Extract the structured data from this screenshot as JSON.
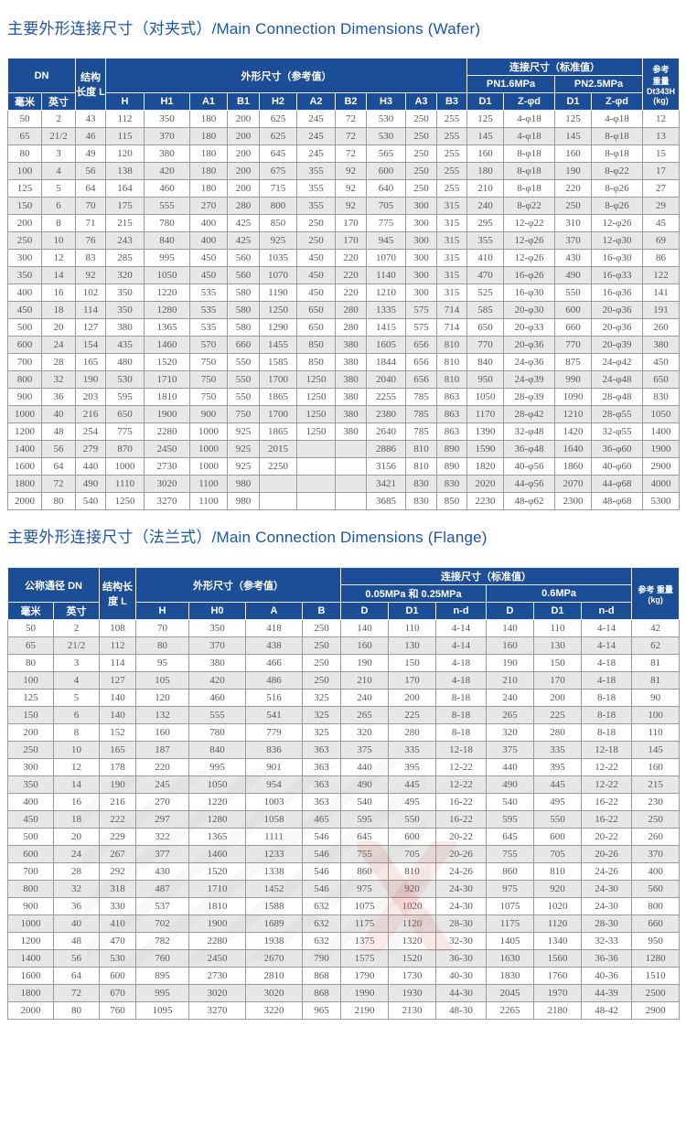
{
  "colors": {
    "header_bg": "#1b4e96",
    "title_text": "#1f55a5",
    "row_alt": "#e7e7e7",
    "body_text": "#5a5a5a"
  },
  "wafer": {
    "title": "主要外形连接尺寸（对夹式）/Main Connection Dimensions (Wafer)",
    "header": {
      "dn": "DN",
      "mm": "毫米",
      "inch": "英寸",
      "length": "结构长度 L",
      "outline": "外形尺寸（参考值）",
      "dims": [
        "H",
        "H1",
        "A1",
        "B1",
        "H2",
        "A2",
        "B2",
        "H3",
        "A3",
        "B3"
      ],
      "conn": "连接尺寸（标准值）",
      "pn16": "PN1.6MPa",
      "pn25": "PN2.5MPa",
      "d1": "D1",
      "zphid": "Z-φd",
      "weight_l1": "参考",
      "weight_l2": "重量",
      "weight_l3": "Dt343H",
      "weight_l4": "(kg)"
    },
    "rows": [
      [
        "50",
        "2",
        "43",
        "112",
        "350",
        "180",
        "200",
        "625",
        "245",
        "72",
        "530",
        "250",
        "255",
        "125",
        "4-φ18",
        "125",
        "4-φ18",
        "12"
      ],
      [
        "65",
        "21/2",
        "46",
        "115",
        "370",
        "180",
        "200",
        "625",
        "245",
        "72",
        "530",
        "250",
        "255",
        "145",
        "4-φ18",
        "145",
        "8-φ18",
        "13"
      ],
      [
        "80",
        "3",
        "49",
        "120",
        "380",
        "180",
        "200",
        "645",
        "245",
        "72",
        "565",
        "250",
        "255",
        "160",
        "8-φ18",
        "160",
        "8-φ18",
        "15"
      ],
      [
        "100",
        "4",
        "56",
        "138",
        "420",
        "180",
        "200",
        "675",
        "355",
        "92",
        "600",
        "250",
        "255",
        "180",
        "8-φ18",
        "190",
        "8-φ22",
        "17"
      ],
      [
        "125",
        "5",
        "64",
        "164",
        "460",
        "180",
        "200",
        "715",
        "355",
        "92",
        "640",
        "250",
        "255",
        "210",
        "8-φ18",
        "220",
        "8-φ26",
        "27"
      ],
      [
        "150",
        "6",
        "70",
        "175",
        "555",
        "270",
        "280",
        "800",
        "355",
        "92",
        "705",
        "300",
        "315",
        "240",
        "8-φ22",
        "250",
        "8-φ26",
        "29"
      ],
      [
        "200",
        "8",
        "71",
        "215",
        "780",
        "400",
        "425",
        "850",
        "250",
        "170",
        "775",
        "300",
        "315",
        "295",
        "12-φ22",
        "310",
        "12-φ26",
        "45"
      ],
      [
        "250",
        "10",
        "76",
        "243",
        "840",
        "400",
        "425",
        "925",
        "250",
        "170",
        "945",
        "300",
        "315",
        "355",
        "12-φ26",
        "370",
        "12-φ30",
        "69"
      ],
      [
        "300",
        "12",
        "83",
        "285",
        "995",
        "450",
        "560",
        "1035",
        "450",
        "220",
        "1070",
        "300",
        "315",
        "410",
        "12-φ26",
        "430",
        "16-φ30",
        "86"
      ],
      [
        "350",
        "14",
        "92",
        "320",
        "1050",
        "450",
        "560",
        "1070",
        "450",
        "220",
        "1140",
        "300",
        "315",
        "470",
        "16-φ26",
        "490",
        "16-φ33",
        "122"
      ],
      [
        "400",
        "16",
        "102",
        "350",
        "1220",
        "535",
        "580",
        "1190",
        "450",
        "220",
        "1210",
        "300",
        "315",
        "525",
        "16-φ30",
        "550",
        "16-φ36",
        "141"
      ],
      [
        "450",
        "18",
        "114",
        "350",
        "1280",
        "535",
        "580",
        "1250",
        "650",
        "280",
        "1335",
        "575",
        "714",
        "585",
        "20-φ30",
        "600",
        "20-φ36",
        "191"
      ],
      [
        "500",
        "20",
        "127",
        "380",
        "1365",
        "535",
        "580",
        "1290",
        "650",
        "280",
        "1415",
        "575",
        "714",
        "650",
        "20-φ33",
        "660",
        "20-φ36",
        "260"
      ],
      [
        "600",
        "24",
        "154",
        "435",
        "1460",
        "570",
        "660",
        "1455",
        "850",
        "380",
        "1605",
        "656",
        "810",
        "770",
        "20-φ36",
        "770",
        "20-φ39",
        "380"
      ],
      [
        "700",
        "28",
        "165",
        "480",
        "1520",
        "750",
        "550",
        "1585",
        "850",
        "380",
        "1844",
        "656",
        "810",
        "840",
        "24-φ36",
        "875",
        "24-φ42",
        "450"
      ],
      [
        "800",
        "32",
        "190",
        "530",
        "1710",
        "750",
        "550",
        "1700",
        "1250",
        "380",
        "2040",
        "656",
        "810",
        "950",
        "24-φ39",
        "990",
        "24-φ48",
        "650"
      ],
      [
        "900",
        "36",
        "203",
        "595",
        "1810",
        "750",
        "550",
        "1865",
        "1250",
        "380",
        "2255",
        "785",
        "863",
        "1050",
        "28-φ39",
        "1090",
        "28-φ48",
        "830"
      ],
      [
        "1000",
        "40",
        "216",
        "650",
        "1900",
        "900",
        "750",
        "1700",
        "1250",
        "380",
        "2380",
        "785",
        "863",
        "1170",
        "28-φ42",
        "1210",
        "28-φ55",
        "1050"
      ],
      [
        "1200",
        "48",
        "254",
        "775",
        "2280",
        "1000",
        "925",
        "1865",
        "1250",
        "380",
        "2640",
        "785",
        "863",
        "1390",
        "32-φ48",
        "1420",
        "32-φ55",
        "1400"
      ],
      [
        "1400",
        "56",
        "279",
        "870",
        "2450",
        "1000",
        "925",
        "2015",
        "",
        "",
        "2886",
        "810",
        "890",
        "1590",
        "36-φ48",
        "1640",
        "36-φ60",
        "1900"
      ],
      [
        "1600",
        "64",
        "440",
        "1000",
        "2730",
        "1000",
        "925",
        "2250",
        "",
        "",
        "3156",
        "810",
        "890",
        "1820",
        "40-φ56",
        "1860",
        "40-φ60",
        "2900"
      ],
      [
        "1800",
        "72",
        "490",
        "1110",
        "3020",
        "1100",
        "980",
        "",
        "",
        "",
        "3421",
        "830",
        "830",
        "2020",
        "44-φ56",
        "2070",
        "44-φ68",
        "4000"
      ],
      [
        "2000",
        "80",
        "540",
        "1250",
        "3270",
        "1100",
        "980",
        "",
        "",
        "",
        "3685",
        "830",
        "850",
        "2230",
        "48-φ62",
        "2300",
        "48-φ68",
        "5300"
      ]
    ]
  },
  "flange": {
    "title": "主要外形连接尺寸（法兰式）/Main Connection Dimensions (Flange)",
    "header": {
      "dn": "公称通径 DN",
      "mm": "毫米",
      "inch": "英寸",
      "length": "结构长度 L",
      "outline": "外形尺寸（参考值）",
      "dims": [
        "H",
        "H0",
        "A",
        "B"
      ],
      "conn": "连接尺寸（标准值）",
      "p_low": "0.05MPa 和 0.25MPa",
      "p_high": "0.6MPa",
      "d": "D",
      "d1": "D1",
      "nd": "n-d",
      "weight_l1": "参考 重量",
      "weight_l2": "(kg)"
    },
    "rows": [
      [
        "50",
        "2",
        "108",
        "70",
        "350",
        "418",
        "250",
        "140",
        "110",
        "4-14",
        "140",
        "110",
        "4-14",
        "42"
      ],
      [
        "65",
        "21/2",
        "112",
        "80",
        "370",
        "438",
        "250",
        "160",
        "130",
        "4-14",
        "160",
        "130",
        "4-14",
        "62"
      ],
      [
        "80",
        "3",
        "114",
        "95",
        "380",
        "466",
        "250",
        "190",
        "150",
        "4-18",
        "190",
        "150",
        "4-18",
        "81"
      ],
      [
        "100",
        "4",
        "127",
        "105",
        "420",
        "486",
        "250",
        "210",
        "170",
        "4-18",
        "210",
        "170",
        "4-18",
        "81"
      ],
      [
        "125",
        "5",
        "140",
        "120",
        "460",
        "516",
        "325",
        "240",
        "200",
        "8-18",
        "240",
        "200",
        "8-18",
        "90"
      ],
      [
        "150",
        "6",
        "140",
        "132",
        "555",
        "541",
        "325",
        "265",
        "225",
        "8-18",
        "265",
        "225",
        "8-18",
        "100"
      ],
      [
        "200",
        "8",
        "152",
        "160",
        "780",
        "779",
        "325",
        "320",
        "280",
        "8-18",
        "320",
        "280",
        "8-18",
        "110"
      ],
      [
        "250",
        "10",
        "165",
        "187",
        "840",
        "836",
        "363",
        "375",
        "335",
        "12-18",
        "375",
        "335",
        "12-18",
        "145"
      ],
      [
        "300",
        "12",
        "178",
        "220",
        "995",
        "901",
        "363",
        "440",
        "395",
        "12-22",
        "440",
        "395",
        "12-22",
        "160"
      ],
      [
        "350",
        "14",
        "190",
        "245",
        "1050",
        "954",
        "363",
        "490",
        "445",
        "12-22",
        "490",
        "445",
        "12-22",
        "215"
      ],
      [
        "400",
        "16",
        "216",
        "270",
        "1220",
        "1003",
        "363",
        "540",
        "495",
        "16-22",
        "540",
        "495",
        "16-22",
        "230"
      ],
      [
        "450",
        "18",
        "222",
        "297",
        "1280",
        "1058",
        "465",
        "595",
        "550",
        "16-22",
        "595",
        "550",
        "16-22",
        "250"
      ],
      [
        "500",
        "20",
        "229",
        "322",
        "1365",
        "1111",
        "546",
        "645",
        "600",
        "20-22",
        "645",
        "600",
        "20-22",
        "260"
      ],
      [
        "600",
        "24",
        "267",
        "377",
        "1460",
        "1233",
        "546",
        "755",
        "705",
        "20-26",
        "755",
        "705",
        "20-26",
        "370"
      ],
      [
        "700",
        "28",
        "292",
        "430",
        "1520",
        "1338",
        "546",
        "860",
        "810",
        "24-26",
        "860",
        "810",
        "24-26",
        "400"
      ],
      [
        "800",
        "32",
        "318",
        "487",
        "1710",
        "1452",
        "546",
        "975",
        "920",
        "24-30",
        "975",
        "920",
        "24-30",
        "560"
      ],
      [
        "900",
        "36",
        "330",
        "537",
        "1810",
        "1588",
        "632",
        "1075",
        "1020",
        "24-30",
        "1075",
        "1020",
        "24-30",
        "800"
      ],
      [
        "1000",
        "40",
        "410",
        "702",
        "1900",
        "1689",
        "632",
        "1175",
        "1120",
        "28-30",
        "1175",
        "1120",
        "28-30",
        "660"
      ],
      [
        "1200",
        "48",
        "470",
        "782",
        "2280",
        "1938",
        "632",
        "1375",
        "1320",
        "32-30",
        "1405",
        "1340",
        "32-33",
        "950"
      ],
      [
        "1400",
        "56",
        "530",
        "760",
        "2450",
        "2670",
        "790",
        "1575",
        "1520",
        "36-30",
        "1630",
        "1560",
        "36-36",
        "1280"
      ],
      [
        "1600",
        "64",
        "600",
        "895",
        "2730",
        "2810",
        "868",
        "1790",
        "1730",
        "40-30",
        "1830",
        "1760",
        "40-36",
        "1510"
      ],
      [
        "1800",
        "72",
        "670",
        "995",
        "3020",
        "3020",
        "868",
        "1990",
        "1930",
        "44-30",
        "2045",
        "1970",
        "44-39",
        "2500"
      ],
      [
        "2000",
        "80",
        "760",
        "1095",
        "3270",
        "3220",
        "965",
        "2190",
        "2130",
        "48-30",
        "2265",
        "2180",
        "48-42",
        "2900"
      ]
    ]
  }
}
